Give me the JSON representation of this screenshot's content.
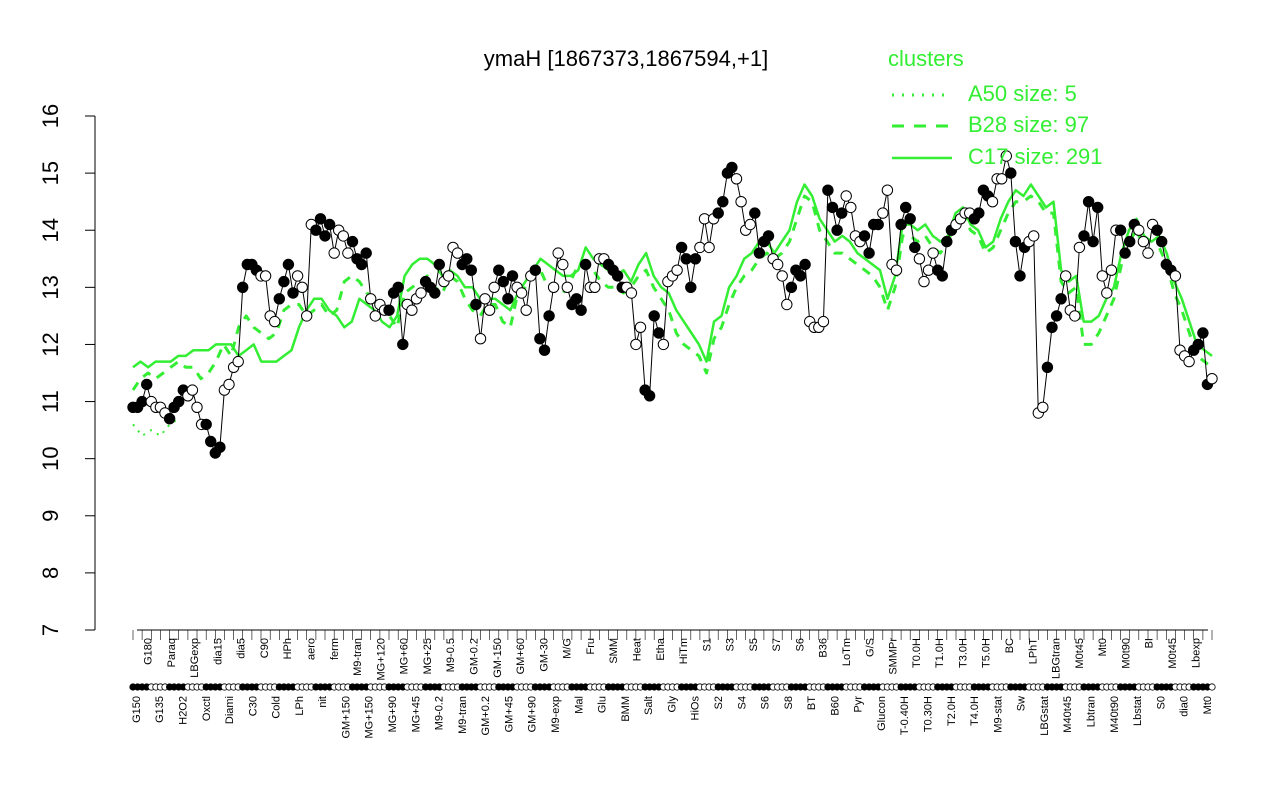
{
  "chart_data": {
    "type": "line",
    "title": "ymaH [1867373,1867594,+1]",
    "xlabel": "",
    "ylabel": "",
    "ylim": [
      7,
      16
    ],
    "yticks": [
      7,
      8,
      9,
      10,
      11,
      12,
      13,
      14,
      15,
      16
    ],
    "grid": false,
    "legend": {
      "title": "clusters",
      "placement": "top-right",
      "entries": [
        {
          "label": "A50 size: 5",
          "style": "dotted"
        },
        {
          "label": "B28 size: 97",
          "style": "dashed"
        },
        {
          "label": "C17 size: 291",
          "style": "solid"
        }
      ]
    },
    "x_tick_labels": [
      "G150",
      "G180",
      "G135",
      "Paraq",
      "H2O2",
      "LBGexp",
      "Oxctl",
      "dia15",
      "Diami",
      "dia5",
      "C30",
      "C90",
      "Cold",
      "HPh",
      "LPh",
      "aero",
      "nit",
      "ferm",
      "GM+150",
      "M9-tran",
      "MG+150",
      "MG+120",
      "MG+90",
      "MG+60",
      "MG+45",
      "MG+25",
      "M9-0.2",
      "M9-0.5",
      "M9-tran",
      "GM-0.2",
      "GM+0.2",
      "GM-150",
      "GM+45",
      "GM+60",
      "GM+90",
      "GM-30",
      "M9-exp",
      "M/G",
      "Mal",
      "Fru",
      "Glu",
      "SMM",
      "BMM",
      "Heat",
      "Salt",
      "Etha",
      "Gly",
      "HiTm",
      "HiOs",
      "S1",
      "S2",
      "S3",
      "S4",
      "S5",
      "S6",
      "S7",
      "S8",
      "S6",
      "BT",
      "B36",
      "B60",
      "LoTm",
      "Pyr",
      "G/S",
      "Glucon",
      "SMMPr",
      "T-0.40H",
      "T0.0H",
      "T0.30H",
      "T1.0H",
      "T2.0H",
      "T3.0H",
      "T4.0H",
      "T5.0H",
      "M9-stat",
      "BC",
      "Sw",
      "LPhT",
      "LBGstat",
      "LBGtran",
      "M40t45",
      "M0t45",
      "Lbtran",
      "Mt0",
      "M40t90",
      "M0t90",
      "Lbstat",
      "BI",
      "S0",
      "M0t45",
      "dia0",
      "Lbexp",
      "Mt0"
    ],
    "series": [
      {
        "values": [
          10.9,
          10.9,
          11.0,
          11.3,
          11.0,
          10.9,
          10.9,
          10.8,
          10.7,
          10.9,
          11.0,
          11.2,
          11.1,
          11.2,
          10.9,
          10.6,
          10.6,
          10.3,
          10.1,
          10.2,
          11.2,
          11.3,
          11.6,
          11.7,
          13.0,
          13.4,
          13.4,
          13.3,
          13.2,
          13.2,
          12.5,
          12.4,
          12.8,
          13.1,
          13.4,
          12.9,
          13.2,
          13.0,
          12.5,
          14.1,
          14.0,
          14.2,
          13.9,
          14.1,
          13.6,
          14.0,
          13.9,
          13.6,
          13.8,
          13.5,
          13.4,
          13.6,
          12.8,
          12.5,
          12.7,
          12.6,
          12.6,
          12.9,
          13.0,
          12.0,
          12.7,
          12.6,
          12.8,
          12.9,
          13.1,
          13.0,
          12.9,
          13.4,
          13.1,
          13.2,
          13.7,
          13.6,
          13.4,
          13.5,
          13.3,
          12.7,
          12.1,
          12.8,
          12.6,
          13.0,
          13.3,
          13.1,
          12.8,
          13.2,
          13.0,
          12.9,
          12.6,
          13.2,
          13.3,
          12.1,
          11.9,
          12.5,
          13.0,
          13.6,
          13.4,
          13.0,
          12.7,
          12.8,
          12.6,
          13.4,
          13.0,
          13.0,
          13.5,
          13.5,
          13.4,
          13.3,
          13.2,
          13.0,
          13.0,
          12.9,
          12.0,
          12.3,
          11.2,
          11.1,
          12.5,
          12.2,
          12.0,
          13.1,
          13.2,
          13.3,
          13.7,
          13.5,
          13.0,
          13.5,
          13.7,
          14.2,
          13.7,
          14.2,
          14.3,
          14.5,
          15.0,
          15.1,
          14.9,
          14.5,
          14.0,
          14.1,
          14.3,
          13.6,
          13.8,
          13.9,
          13.5,
          13.4,
          13.2,
          12.7,
          13.0,
          13.3,
          13.2,
          13.4,
          12.4,
          12.3,
          12.3,
          12.4,
          14.7,
          14.4,
          14.0,
          14.3,
          14.6,
          14.4,
          13.9,
          13.8,
          13.9,
          13.6,
          14.1,
          14.1,
          14.3,
          14.7,
          13.4,
          13.3,
          14.1,
          14.4,
          14.2,
          13.7,
          13.5,
          13.1,
          13.3,
          13.6,
          13.3,
          13.2,
          13.8,
          14.0,
          14.1,
          14.2,
          14.3,
          14.3,
          14.2,
          14.3,
          14.7,
          14.6,
          14.5,
          14.9,
          14.9,
          15.3,
          15.0,
          13.8,
          13.2,
          13.7,
          13.8,
          13.9,
          10.8,
          10.9,
          11.6,
          12.3,
          12.5,
          12.8,
          13.2,
          12.6,
          12.5,
          13.7,
          13.9,
          14.5,
          13.8,
          14.4,
          13.2,
          12.9,
          13.3,
          14.0,
          14.0,
          13.6,
          13.8,
          14.1,
          14.0,
          13.8,
          13.6,
          14.1,
          14.0,
          13.8,
          13.4,
          13.3,
          13.2,
          11.9,
          11.8,
          11.7,
          11.9,
          12.0,
          12.2,
          11.3,
          11.4
        ]
      },
      {
        "name": "C17",
        "values": [
          11.6,
          11.7,
          11.6,
          11.7,
          11.7,
          11.7,
          11.8,
          11.8,
          11.9,
          11.9,
          11.9,
          12.0,
          12.0,
          12.0,
          11.8,
          11.9,
          12.0,
          11.7,
          11.7,
          11.7,
          11.8,
          11.9,
          12.3,
          12.6,
          12.8,
          12.8,
          12.6,
          12.5,
          12.3,
          12.4,
          12.8,
          12.7,
          12.6,
          12.4,
          12.3,
          12.5,
          13.2,
          13.4,
          13.5,
          13.5,
          13.4,
          13.2,
          13.3,
          13.2,
          13.0,
          13.0,
          12.8,
          12.8,
          12.8,
          12.7,
          12.6,
          12.9,
          13.1,
          13.3,
          13.5,
          13.4,
          13.3,
          13.2,
          13.2,
          13.3,
          13.7,
          13.5,
          13.4,
          13.3,
          13.2,
          13.3,
          13.1,
          13.4,
          13.6,
          13.2,
          13.0,
          12.9,
          12.6,
          12.4,
          12.2,
          12.0,
          11.7,
          12.4,
          12.5,
          13.0,
          13.2,
          13.5,
          13.6,
          13.8,
          13.8,
          13.6,
          13.8,
          14.0,
          14.5,
          14.8,
          14.6,
          14.2,
          14.0,
          13.8,
          13.9,
          13.8,
          13.6,
          13.5,
          13.4,
          13.3,
          12.8,
          13.2,
          14.1,
          14.1,
          14.0,
          14.1,
          13.9,
          13.8,
          13.9,
          14.3,
          14.4,
          14.1,
          14.0,
          13.7,
          13.8,
          14.2,
          14.5,
          14.7,
          14.6,
          14.8,
          14.6,
          14.4,
          14.5,
          13.3,
          13.1,
          13.2,
          12.4,
          12.4,
          12.5,
          12.8,
          13.0,
          13.6,
          14.0,
          14.2,
          13.9,
          13.8,
          13.9,
          13.6,
          13.1,
          12.8,
          12.4,
          12.0,
          11.9,
          11.8
        ]
      },
      {
        "name": "B28",
        "values": [
          11.2,
          11.4,
          11.5,
          11.4,
          11.5,
          11.6,
          11.7,
          11.6,
          11.6,
          11.4,
          11.5,
          11.7,
          12.0,
          11.8,
          12.3,
          12.5,
          12.3,
          12.2,
          12.1,
          12.2,
          12.6,
          12.7,
          12.7,
          12.5,
          12.6,
          12.7,
          12.5,
          12.6,
          13.1,
          13.2,
          13.1,
          12.9,
          12.8,
          12.6,
          12.5,
          12.3,
          12.9,
          13.0,
          13.1,
          13.2,
          13.0,
          12.9,
          13.2,
          13.1,
          12.8,
          12.6,
          12.5,
          12.7,
          12.7,
          12.4,
          12.3,
          12.9,
          13.0,
          13.2,
          13.3,
          13.0,
          13.0,
          12.9,
          13.1,
          13.4,
          13.4,
          13.3,
          13.1,
          13.0,
          13.0,
          12.9,
          13.0,
          13.2,
          13.3,
          13.0,
          12.8,
          12.6,
          12.2,
          12.0,
          11.9,
          11.8,
          11.5,
          12.1,
          12.3,
          12.7,
          13.0,
          13.2,
          13.3,
          13.5,
          13.6,
          13.5,
          13.6,
          13.8,
          14.2,
          14.6,
          14.5,
          14.0,
          13.8,
          13.6,
          13.6,
          13.5,
          13.4,
          13.3,
          13.2,
          13.0,
          12.6,
          13.0,
          13.9,
          13.9,
          13.8,
          13.9,
          13.7,
          13.6,
          13.8,
          14.1,
          14.3,
          14.0,
          13.9,
          13.6,
          13.7,
          14.0,
          14.3,
          14.5,
          14.5,
          14.6,
          14.5,
          14.3,
          14.3,
          13.1,
          12.9,
          13.0,
          12.0,
          12.0,
          12.2,
          12.5,
          12.8,
          13.4,
          13.8,
          14.0,
          13.7,
          13.6,
          13.7,
          13.4,
          12.9,
          12.6,
          12.2,
          11.8,
          11.7,
          11.6
        ]
      },
      {
        "name": "A50",
        "values": [
          10.6,
          10.4,
          10.5,
          10.4,
          10.6,
          10.7
        ]
      }
    ]
  }
}
